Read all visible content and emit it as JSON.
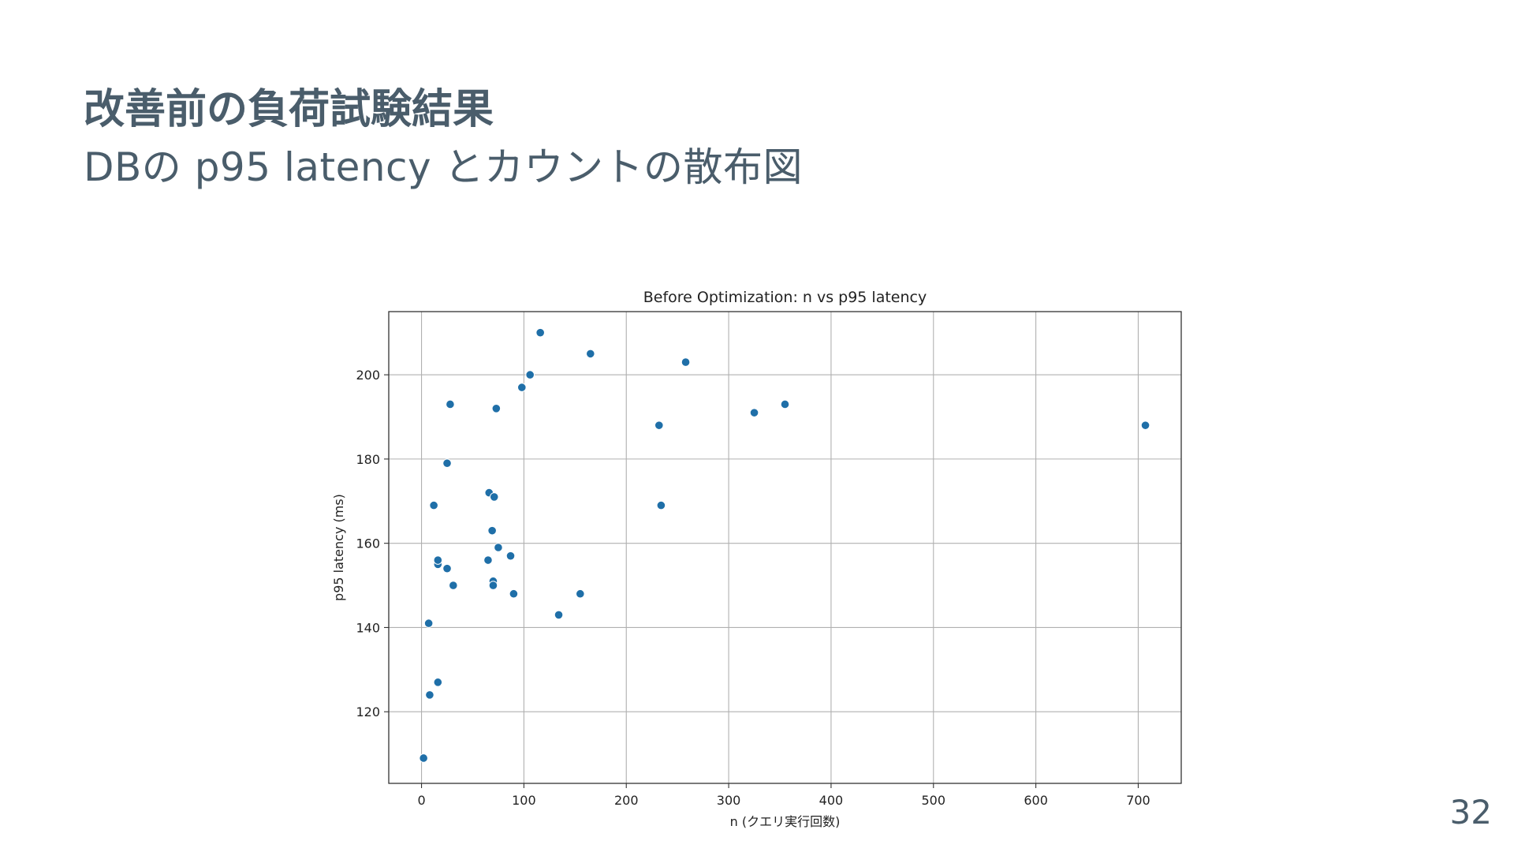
{
  "slide": {
    "title": "改善前の負荷試験結果",
    "subtitle": "DBの p95 latency とカウントの散布図",
    "page_number": "32"
  },
  "chart_data": {
    "type": "scatter",
    "title": "Before Optimization: n vs p95 latency",
    "xlabel": "n (クエリ実行回数)",
    "ylabel": "p95 latency (ms)",
    "xlim": [
      -32,
      742
    ],
    "ylim": [
      103,
      215
    ],
    "x_ticks": [
      0,
      100,
      200,
      300,
      400,
      500,
      600,
      700
    ],
    "y_ticks": [
      120,
      140,
      160,
      180,
      200
    ],
    "grid": true,
    "marker_color": "#1f6fa8",
    "points": [
      {
        "x": 2,
        "y": 109
      },
      {
        "x": 8,
        "y": 124
      },
      {
        "x": 7,
        "y": 141
      },
      {
        "x": 16,
        "y": 127
      },
      {
        "x": 12,
        "y": 169
      },
      {
        "x": 16,
        "y": 155
      },
      {
        "x": 16,
        "y": 156
      },
      {
        "x": 25,
        "y": 154
      },
      {
        "x": 25,
        "y": 179
      },
      {
        "x": 28,
        "y": 193
      },
      {
        "x": 31,
        "y": 150
      },
      {
        "x": 65,
        "y": 156
      },
      {
        "x": 66,
        "y": 172
      },
      {
        "x": 69,
        "y": 163
      },
      {
        "x": 70,
        "y": 151
      },
      {
        "x": 70,
        "y": 150
      },
      {
        "x": 71,
        "y": 171
      },
      {
        "x": 73,
        "y": 192
      },
      {
        "x": 75,
        "y": 159
      },
      {
        "x": 87,
        "y": 157
      },
      {
        "x": 90,
        "y": 148
      },
      {
        "x": 98,
        "y": 197
      },
      {
        "x": 106,
        "y": 200
      },
      {
        "x": 116,
        "y": 210
      },
      {
        "x": 134,
        "y": 143
      },
      {
        "x": 155,
        "y": 148
      },
      {
        "x": 165,
        "y": 205
      },
      {
        "x": 232,
        "y": 188
      },
      {
        "x": 234,
        "y": 169
      },
      {
        "x": 258,
        "y": 203
      },
      {
        "x": 325,
        "y": 191
      },
      {
        "x": 355,
        "y": 193
      },
      {
        "x": 707,
        "y": 188
      }
    ]
  }
}
